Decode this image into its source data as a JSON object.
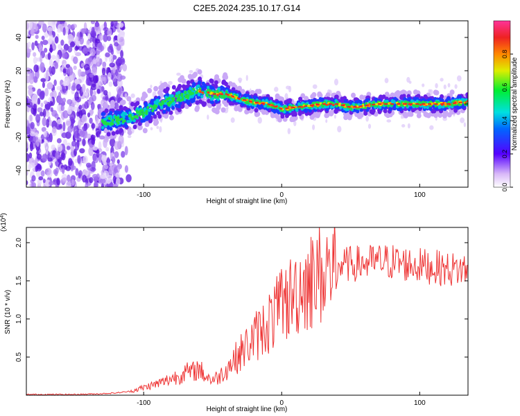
{
  "figure": {
    "title": "C2E5.2024.235.10.17.G14"
  },
  "chart_data": [
    {
      "type": "heatmap",
      "title": "C2E5.2024.235.10.17.G14",
      "xlabel": "Height of straight line (km)",
      "ylabel": "Frequency (Hz)",
      "xlim": [
        -185,
        135
      ],
      "ylim": [
        -50,
        50
      ],
      "x_ticks": [
        -100,
        0,
        100
      ],
      "x_tick_labels": [
        "-100",
        "0",
        "100"
      ],
      "y_ticks": [
        -40,
        -20,
        0,
        20,
        40
      ],
      "y_tick_labels": [
        "-40",
        "-20",
        "0",
        "20",
        "40"
      ],
      "colorbar": {
        "label": "Normalized spectral amplitude",
        "range": [
          0,
          1
        ],
        "ticks": [
          0,
          0.2,
          0.4,
          0.6,
          0.8
        ],
        "tick_labels": [
          "0.0",
          "0.2",
          "0.4",
          "0.6",
          "0.8"
        ]
      },
      "ridge": {
        "description": "peak spectral amplitude trace",
        "x": [
          -128,
          -115,
          -100,
          -90,
          -80,
          -70,
          -60,
          -50,
          -40,
          -30,
          -20,
          -10,
          0,
          10,
          20,
          30,
          40,
          50,
          60,
          70,
          80,
          90,
          100,
          110,
          120,
          130
        ],
        "y": [
          -11,
          -9,
          -5,
          -1,
          2,
          5,
          8,
          6,
          6,
          3,
          1,
          0,
          -3,
          -2,
          -1,
          0,
          0,
          -2,
          -1,
          0,
          0,
          0,
          0,
          0,
          0,
          1
        ]
      }
    },
    {
      "type": "line",
      "xlabel": "Height of straight line (km)",
      "ylabel": "SNR (10 * v/v)",
      "y_multiplier_label": "(x10",
      "y_multiplier_exp": "4",
      "y_multiplier_close": ")",
      "xlim": [
        -185,
        135
      ],
      "ylim": [
        0,
        2.2
      ],
      "x_ticks": [
        -100,
        0,
        100
      ],
      "x_tick_labels": [
        "-100",
        "0",
        "100"
      ],
      "y_ticks": [
        0.5,
        1.0,
        1.5,
        2.0
      ],
      "y_tick_labels": [
        "0.5",
        "1.0",
        "1.5",
        "2.0"
      ],
      "series": [
        {
          "name": "SNR",
          "color": "#ee3333",
          "x": [
            -185,
            -170,
            -150,
            -130,
            -120,
            -110,
            -100,
            -90,
            -85,
            -80,
            -75,
            -70,
            -65,
            -60,
            -55,
            -50,
            -45,
            -40,
            -35,
            -30,
            -25,
            -20,
            -15,
            -10,
            -5,
            0,
            5,
            10,
            15,
            20,
            25,
            30,
            35,
            40,
            50,
            60,
            70,
            80,
            90,
            100,
            110,
            120,
            135
          ],
          "y": [
            0.01,
            0.01,
            0.01,
            0.02,
            0.03,
            0.05,
            0.1,
            0.15,
            0.18,
            0.22,
            0.25,
            0.3,
            0.3,
            0.35,
            0.25,
            0.2,
            0.25,
            0.35,
            0.45,
            0.55,
            0.65,
            0.75,
            0.85,
            0.95,
            1.05,
            1.15,
            1.25,
            1.35,
            1.45,
            1.5,
            1.55,
            1.6,
            1.65,
            1.7,
            1.72,
            1.73,
            1.75,
            1.75,
            1.72,
            1.7,
            1.68,
            1.65,
            1.65
          ]
        }
      ]
    }
  ]
}
